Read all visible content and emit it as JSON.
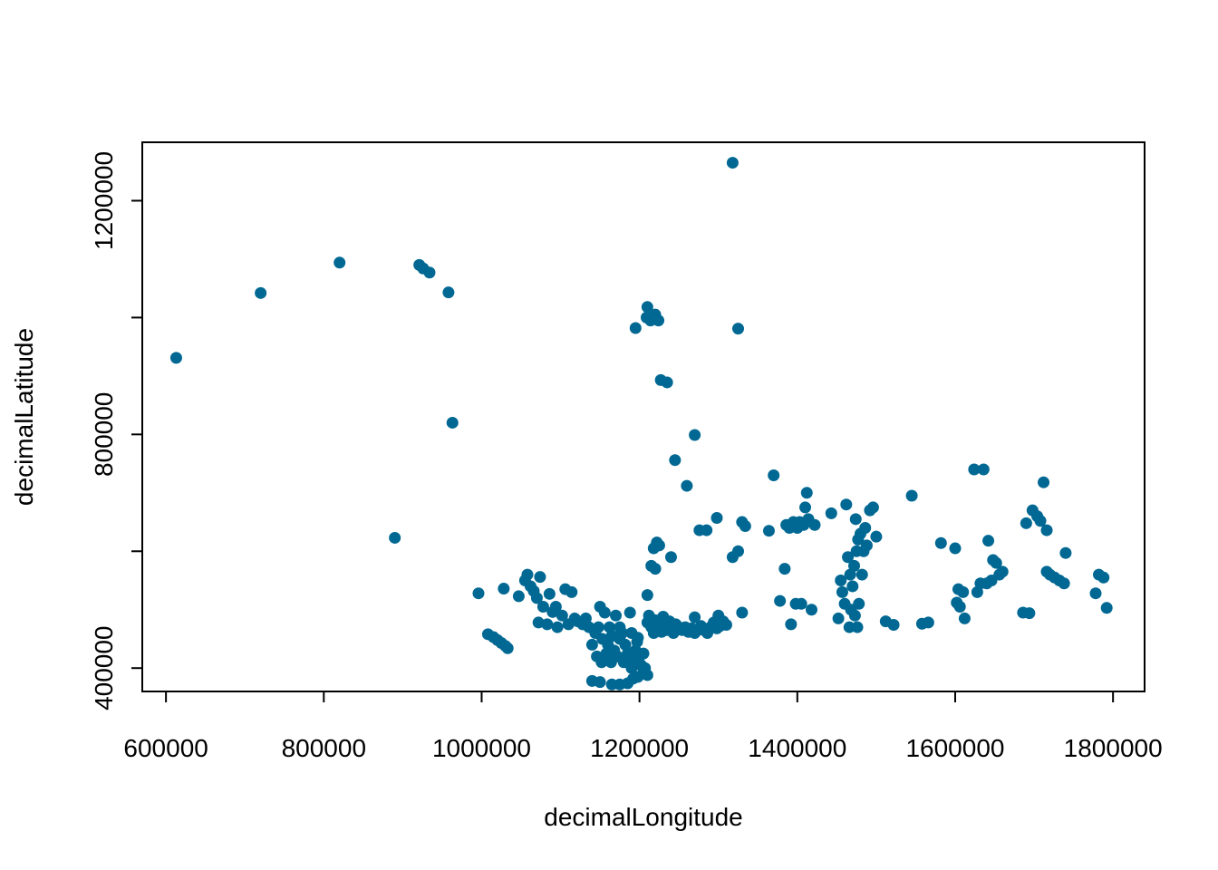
{
  "chart_data": {
    "type": "scatter",
    "title": "",
    "xlabel": "decimalLongitude",
    "ylabel": "decimalLatitude",
    "xlim": [
      570000,
      1840000
    ],
    "ylim": [
      360000,
      1300000
    ],
    "xticks": [
      600000,
      800000,
      1000000,
      1200000,
      1400000,
      1600000,
      1800000
    ],
    "yticks": [
      400000,
      600000,
      800000,
      1000000,
      1200000
    ],
    "ytick_labels": [
      "400000",
      "",
      "800000",
      "",
      "1200000"
    ],
    "grid": false,
    "legend": "none",
    "point_color": "#006892",
    "points": [
      [
        613000,
        931000
      ],
      [
        720000,
        1042000
      ],
      [
        820000,
        1094000
      ],
      [
        890000,
        623000
      ],
      [
        921000,
        1090000
      ],
      [
        926000,
        1084000
      ],
      [
        934000,
        1077000
      ],
      [
        958000,
        1043000
      ],
      [
        963000,
        820000
      ],
      [
        1318000,
        1265000
      ],
      [
        1325000,
        981000
      ],
      [
        1195000,
        982000
      ],
      [
        1210000,
        1018000
      ],
      [
        1209000,
        1000000
      ],
      [
        1214000,
        995000
      ],
      [
        1220000,
        1005000
      ],
      [
        1224000,
        995000
      ],
      [
        1227000,
        893000
      ],
      [
        1235000,
        889000
      ],
      [
        1270000,
        799000
      ],
      [
        1245000,
        756000
      ],
      [
        1260000,
        712000
      ],
      [
        996000,
        528000
      ],
      [
        1008000,
        458000
      ],
      [
        1015000,
        453000
      ],
      [
        1020000,
        448000
      ],
      [
        1025000,
        443000
      ],
      [
        1030000,
        438000
      ],
      [
        1033000,
        434000
      ],
      [
        1028000,
        536000
      ],
      [
        1047000,
        523000
      ],
      [
        1055000,
        550000
      ],
      [
        1058000,
        560000
      ],
      [
        1062000,
        540000
      ],
      [
        1066000,
        532000
      ],
      [
        1070000,
        520000
      ],
      [
        1074000,
        556000
      ],
      [
        1072000,
        478000
      ],
      [
        1078000,
        505000
      ],
      [
        1083000,
        475000
      ],
      [
        1086000,
        527000
      ],
      [
        1090000,
        496000
      ],
      [
        1094000,
        505000
      ],
      [
        1096000,
        470000
      ],
      [
        1102000,
        490000
      ],
      [
        1106000,
        535000
      ],
      [
        1110000,
        475000
      ],
      [
        1114000,
        530000
      ],
      [
        1118000,
        485000
      ],
      [
        1122000,
        480000
      ],
      [
        1128000,
        475000
      ],
      [
        1132000,
        485000
      ],
      [
        1136000,
        470000
      ],
      [
        1140000,
        440000
      ],
      [
        1144000,
        460000
      ],
      [
        1148000,
        470000
      ],
      [
        1150000,
        505000
      ],
      [
        1153000,
        450000
      ],
      [
        1156000,
        495000
      ],
      [
        1160000,
        440000
      ],
      [
        1162000,
        470000
      ],
      [
        1165000,
        455000
      ],
      [
        1168000,
        430000
      ],
      [
        1170000,
        490000
      ],
      [
        1172000,
        420000
      ],
      [
        1175000,
        450000
      ],
      [
        1178000,
        460000
      ],
      [
        1180000,
        410000
      ],
      [
        1182000,
        440000
      ],
      [
        1185000,
        425000
      ],
      [
        1188000,
        495000
      ],
      [
        1190000,
        400000
      ],
      [
        1192000,
        415000
      ],
      [
        1195000,
        430000
      ],
      [
        1197000,
        445000
      ],
      [
        1200000,
        420000
      ],
      [
        1202000,
        405000
      ],
      [
        1205000,
        425000
      ],
      [
        1207000,
        400000
      ],
      [
        1146000,
        420000
      ],
      [
        1152000,
        410000
      ],
      [
        1158000,
        425000
      ],
      [
        1164000,
        410000
      ],
      [
        1140000,
        378000
      ],
      [
        1150000,
        376000
      ],
      [
        1165000,
        372000
      ],
      [
        1175000,
        372000
      ],
      [
        1185000,
        374000
      ],
      [
        1192000,
        382000
      ],
      [
        1198000,
        385000
      ],
      [
        1205000,
        392000
      ],
      [
        1210000,
        388000
      ],
      [
        1165000,
        455000
      ],
      [
        1175000,
        470000
      ],
      [
        1190000,
        460000
      ],
      [
        1198000,
        452000
      ],
      [
        1210000,
        478000
      ],
      [
        1212000,
        490000
      ],
      [
        1215000,
        470000
      ],
      [
        1218000,
        460000
      ],
      [
        1220000,
        482000
      ],
      [
        1222000,
        468000
      ],
      [
        1225000,
        475000
      ],
      [
        1228000,
        462000
      ],
      [
        1230000,
        488000
      ],
      [
        1232000,
        470000
      ],
      [
        1235000,
        465000
      ],
      [
        1238000,
        480000
      ],
      [
        1240000,
        470000
      ],
      [
        1243000,
        460000
      ],
      [
        1246000,
        475000
      ],
      [
        1250000,
        470000
      ],
      [
        1254000,
        465000
      ],
      [
        1258000,
        470000
      ],
      [
        1262000,
        462000
      ],
      [
        1266000,
        468000
      ],
      [
        1270000,
        460000
      ],
      [
        1274000,
        465000
      ],
      [
        1278000,
        472000
      ],
      [
        1282000,
        465000
      ],
      [
        1286000,
        460000
      ],
      [
        1290000,
        470000
      ],
      [
        1294000,
        478000
      ],
      [
        1298000,
        468000
      ],
      [
        1302000,
        472000
      ],
      [
        1306000,
        480000
      ],
      [
        1310000,
        474000
      ],
      [
        1270000,
        487000
      ],
      [
        1300000,
        490000
      ],
      [
        1210000,
        525000
      ],
      [
        1215000,
        575000
      ],
      [
        1220000,
        570000
      ],
      [
        1218000,
        605000
      ],
      [
        1222000,
        615000
      ],
      [
        1225000,
        610000
      ],
      [
        1240000,
        590000
      ],
      [
        1276000,
        636000
      ],
      [
        1285000,
        636000
      ],
      [
        1298000,
        657000
      ],
      [
        1318000,
        590000
      ],
      [
        1325000,
        600000
      ],
      [
        1330000,
        650000
      ],
      [
        1334000,
        643000
      ],
      [
        1330000,
        495000
      ],
      [
        1364000,
        635000
      ],
      [
        1370000,
        730000
      ],
      [
        1378000,
        515000
      ],
      [
        1384000,
        570000
      ],
      [
        1386000,
        645000
      ],
      [
        1390000,
        640000
      ],
      [
        1392000,
        475000
      ],
      [
        1395000,
        650000
      ],
      [
        1398000,
        510000
      ],
      [
        1400000,
        640000
      ],
      [
        1403000,
        650000
      ],
      [
        1405000,
        510000
      ],
      [
        1408000,
        645000
      ],
      [
        1410000,
        675000
      ],
      [
        1412000,
        700000
      ],
      [
        1414000,
        655000
      ],
      [
        1418000,
        500000
      ],
      [
        1422000,
        645000
      ],
      [
        1443000,
        665000
      ],
      [
        1452000,
        485000
      ],
      [
        1455000,
        550000
      ],
      [
        1457000,
        530000
      ],
      [
        1460000,
        510000
      ],
      [
        1462000,
        680000
      ],
      [
        1464000,
        590000
      ],
      [
        1466000,
        470000
      ],
      [
        1467000,
        560000
      ],
      [
        1468000,
        500000
      ],
      [
        1470000,
        540000
      ],
      [
        1472000,
        575000
      ],
      [
        1473000,
        490000
      ],
      [
        1474000,
        655000
      ],
      [
        1475000,
        600000
      ],
      [
        1476000,
        470000
      ],
      [
        1477000,
        620000
      ],
      [
        1478000,
        510000
      ],
      [
        1480000,
        630000
      ],
      [
        1482000,
        560000
      ],
      [
        1484000,
        600000
      ],
      [
        1486000,
        640000
      ],
      [
        1488000,
        610000
      ],
      [
        1492000,
        670000
      ],
      [
        1496000,
        675000
      ],
      [
        1500000,
        625000
      ],
      [
        1512000,
        480000
      ],
      [
        1522000,
        474000
      ],
      [
        1545000,
        695000
      ],
      [
        1558000,
        476000
      ],
      [
        1566000,
        478000
      ],
      [
        1582000,
        614000
      ],
      [
        1600000,
        605000
      ],
      [
        1602000,
        512000
      ],
      [
        1604000,
        535000
      ],
      [
        1606000,
        505000
      ],
      [
        1610000,
        530000
      ],
      [
        1612000,
        485000
      ],
      [
        1624000,
        740000
      ],
      [
        1628000,
        530000
      ],
      [
        1632000,
        545000
      ],
      [
        1636000,
        740000
      ],
      [
        1640000,
        545000
      ],
      [
        1642000,
        618000
      ],
      [
        1646000,
        550000
      ],
      [
        1648000,
        585000
      ],
      [
        1652000,
        580000
      ],
      [
        1656000,
        560000
      ],
      [
        1660000,
        565000
      ],
      [
        1686000,
        495000
      ],
      [
        1690000,
        648000
      ],
      [
        1694000,
        494000
      ],
      [
        1698000,
        670000
      ],
      [
        1704000,
        660000
      ],
      [
        1708000,
        652000
      ],
      [
        1712000,
        718000
      ],
      [
        1716000,
        636000
      ],
      [
        1716000,
        565000
      ],
      [
        1720000,
        560000
      ],
      [
        1726000,
        555000
      ],
      [
        1732000,
        550000
      ],
      [
        1738000,
        545000
      ],
      [
        1740000,
        597000
      ],
      [
        1778000,
        528000
      ],
      [
        1782000,
        560000
      ],
      [
        1788000,
        555000
      ],
      [
        1792000,
        503000
      ]
    ]
  }
}
